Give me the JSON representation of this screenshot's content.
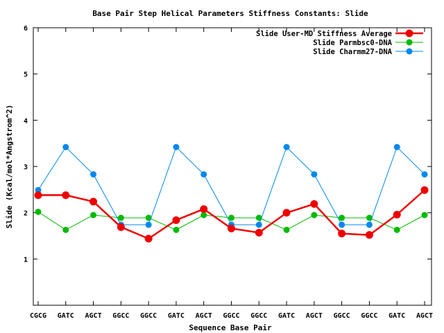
{
  "chart_data": {
    "type": "line",
    "title": "Base Pair Step Helical Parameters Stiffness Constants: Slide",
    "xlabel": "Sequence Base Pair",
    "ylabel": "Slide (Kcal/mol*Angstrom^2)",
    "categories": [
      "CGCG",
      "GATC",
      "AGCT",
      "GGCC",
      "GGCC",
      "GATC",
      "AGCT",
      "GGCC",
      "GGCC",
      "GATC",
      "AGCT",
      "GGCC",
      "GGCC",
      "GATC",
      "AGCT"
    ],
    "ylim": [
      0,
      6
    ],
    "yticks": [
      1,
      2,
      3,
      4,
      5,
      6
    ],
    "legend_position": "top-right",
    "series": [
      {
        "name": "Slide User-MD Stiffness Average",
        "color": "#ee0000",
        "values": [
          2.38,
          2.38,
          2.24,
          1.69,
          1.44,
          1.84,
          2.08,
          1.66,
          1.57,
          2.0,
          2.19,
          1.55,
          1.52,
          1.96,
          2.49
        ]
      },
      {
        "name": "Slide Parmbsc0-DNA",
        "color": "#00bb00",
        "values": [
          2.02,
          1.63,
          1.95,
          1.89,
          1.89,
          1.63,
          1.95,
          1.89,
          1.89,
          1.63,
          1.95,
          1.89,
          1.89,
          1.63,
          1.95
        ]
      },
      {
        "name": "Slide Charmm27-DNA",
        "color": "#0088ee",
        "values": [
          2.49,
          3.42,
          2.83,
          1.74,
          1.74,
          3.42,
          2.83,
          1.74,
          1.74,
          3.42,
          2.83,
          1.74,
          1.74,
          3.42,
          2.83
        ]
      }
    ]
  }
}
